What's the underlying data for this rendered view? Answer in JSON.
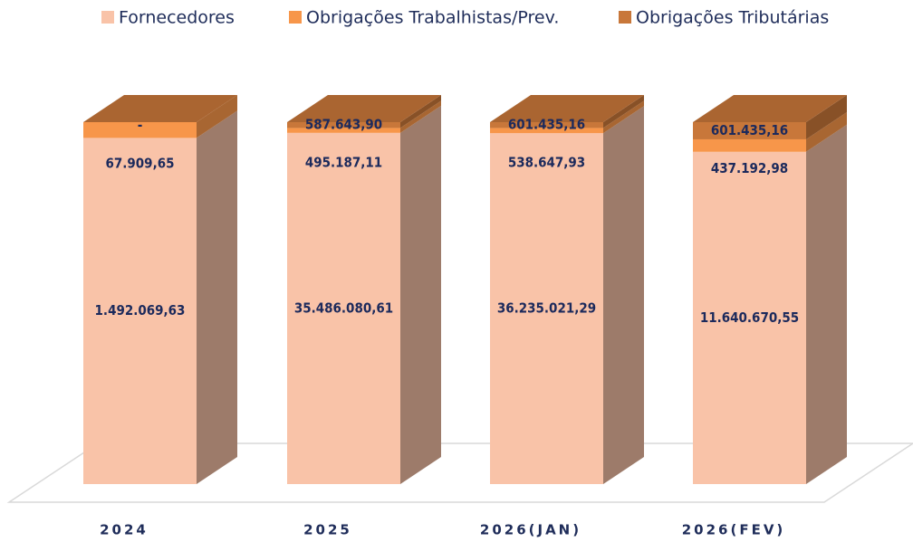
{
  "chart_data": {
    "type": "stacked_bar_100",
    "categories": [
      "2024",
      "2025",
      "2026(JAN)",
      "2026(FEV)"
    ],
    "series": [
      {
        "name": "Fornecedores",
        "color": "#f9c3a8",
        "values": [
          1492069.63,
          35486080.61,
          36235021.29,
          11640670.55
        ],
        "value_labels": [
          "1.492.069,63",
          "35.486.080,61",
          "36.235.021,29",
          "11.640.670,55"
        ]
      },
      {
        "name": "Obrigações Trabalhistas/Prev.",
        "color": "#f7964a",
        "values": [
          67909.65,
          495187.11,
          538647.93,
          437192.98
        ],
        "value_labels": [
          "67.909,65",
          "495.187,11",
          "538.647,93",
          "437.192,98"
        ]
      },
      {
        "name": "Obrigações Tributárias",
        "color": "#c8773a",
        "values": [
          0,
          587643.9,
          601435.16,
          601435.16
        ],
        "value_labels": [
          "-",
          "587.643,90",
          "601.435,16",
          "601.435,16"
        ]
      }
    ],
    "legend": "top"
  }
}
